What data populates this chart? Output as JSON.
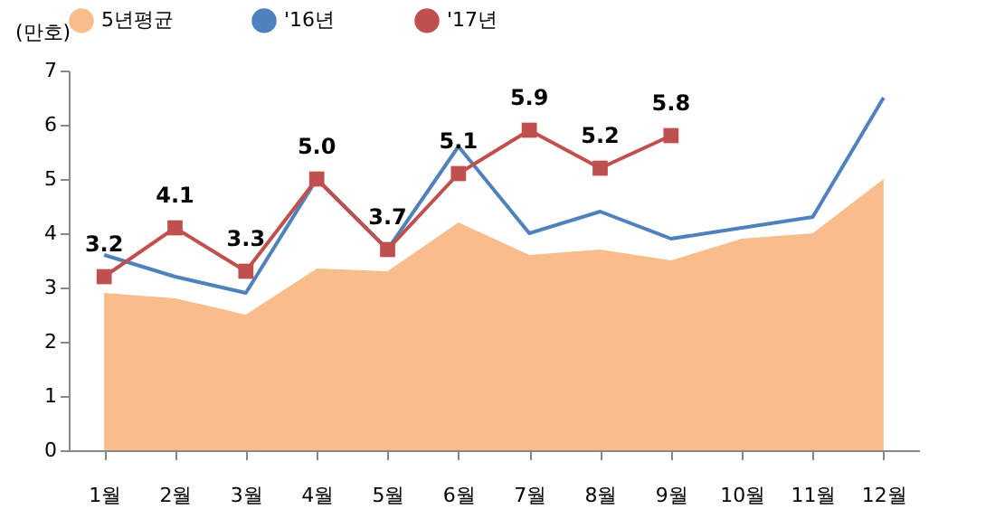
{
  "chart_data": {
    "type": "line",
    "ylabel": "(만호)",
    "categories": [
      "1월",
      "2월",
      "3월",
      "4월",
      "5월",
      "6월",
      "7월",
      "8월",
      "9월",
      "10월",
      "11월",
      "12월"
    ],
    "series": [
      {
        "name": "5년평균",
        "type": "area",
        "color": "#f9bd8c",
        "values": [
          2.9,
          2.8,
          2.5,
          3.35,
          3.3,
          4.2,
          3.6,
          3.7,
          3.5,
          3.9,
          4.0,
          5.0
        ]
      },
      {
        "name": "'16년",
        "color": "#4f81bd",
        "values": [
          3.6,
          3.2,
          2.9,
          5.0,
          3.7,
          5.6,
          4.0,
          4.4,
          3.9,
          4.1,
          4.3,
          6.5
        ]
      },
      {
        "name": "'17년",
        "color": "#c0504d",
        "marker": "square",
        "values": [
          3.2,
          4.1,
          3.3,
          5.0,
          3.7,
          5.1,
          5.9,
          5.2,
          5.8,
          null,
          null,
          null
        ],
        "value_labels": [
          "3.2",
          "4.1",
          "3.3",
          "5.0",
          "3.7",
          "5.1",
          "5.9",
          "5.2",
          "5.8",
          null,
          null,
          null
        ]
      }
    ],
    "ylim": [
      0,
      7
    ],
    "yticks": [
      0,
      1,
      2,
      3,
      4,
      5,
      6,
      7
    ],
    "grid": false,
    "legend": "top"
  }
}
